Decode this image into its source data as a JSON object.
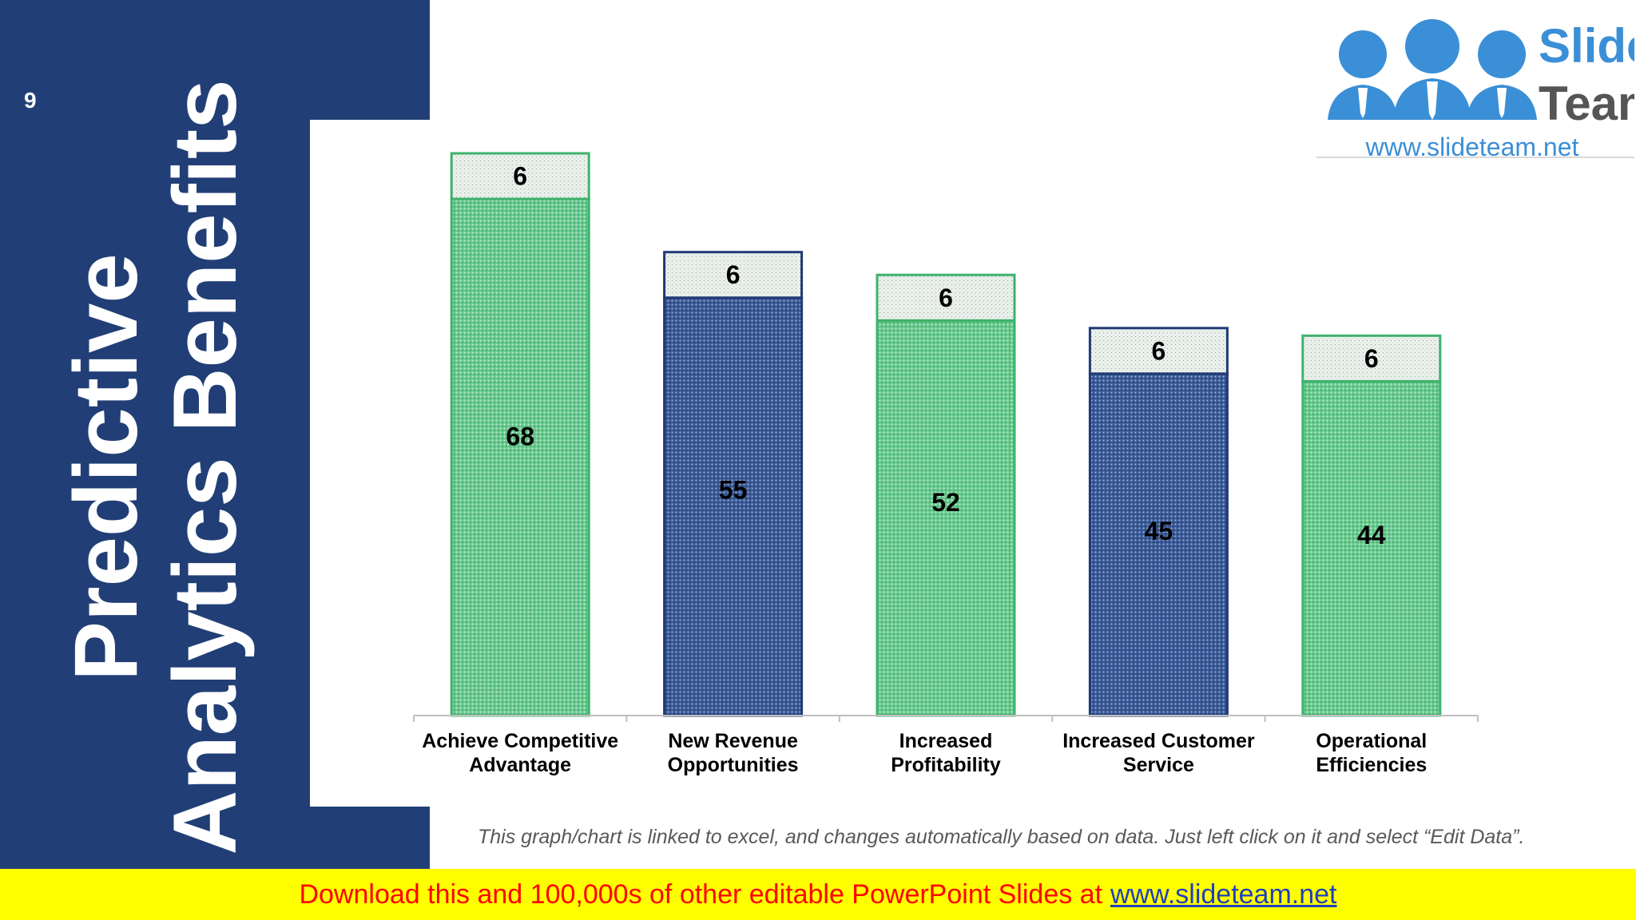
{
  "slide": {
    "number": "9",
    "title_line1": "Predictive",
    "title_line2": "Analytics Benefits",
    "note": "This graph/chart is linked to excel, and changes automatically based on data. Just left click on it and select “Edit Data”.",
    "banner_text": "Download this and 100,000s of other editable PowerPoint Slides at",
    "banner_link": "www.slideteam.net"
  },
  "logo": {
    "word1": "Slide",
    "word2": "Team",
    "url": "www.slideteam.net",
    "colors": {
      "blue": "#3b8fd6",
      "gray": "#555555"
    }
  },
  "chart_data": {
    "type": "bar",
    "stacked": true,
    "categories": [
      "Achieve Competitive Advantage",
      "New Revenue Opportunities",
      "Increased Profitability",
      "Increased Customer Service",
      "Operational Efficiencies"
    ],
    "category_lines": [
      [
        "Achieve Competitive",
        "Advantage"
      ],
      [
        "New Revenue",
        "Opportunities"
      ],
      [
        "Increased",
        "Profitability"
      ],
      [
        "Increased Customer",
        "Service"
      ],
      [
        "Operational",
        "Efficiencies"
      ]
    ],
    "series": [
      {
        "values": [
          68,
          55,
          52,
          45,
          44
        ]
      },
      {
        "values": [
          6,
          6,
          6,
          6,
          6
        ]
      }
    ],
    "bar_colors": [
      "#4fba7a",
      "#2b4a86",
      "#4fba7a",
      "#2b4a86",
      "#4fba7a"
    ],
    "ylim": [
      0,
      74
    ],
    "grid": false,
    "legend": "none",
    "data_labels": true
  }
}
